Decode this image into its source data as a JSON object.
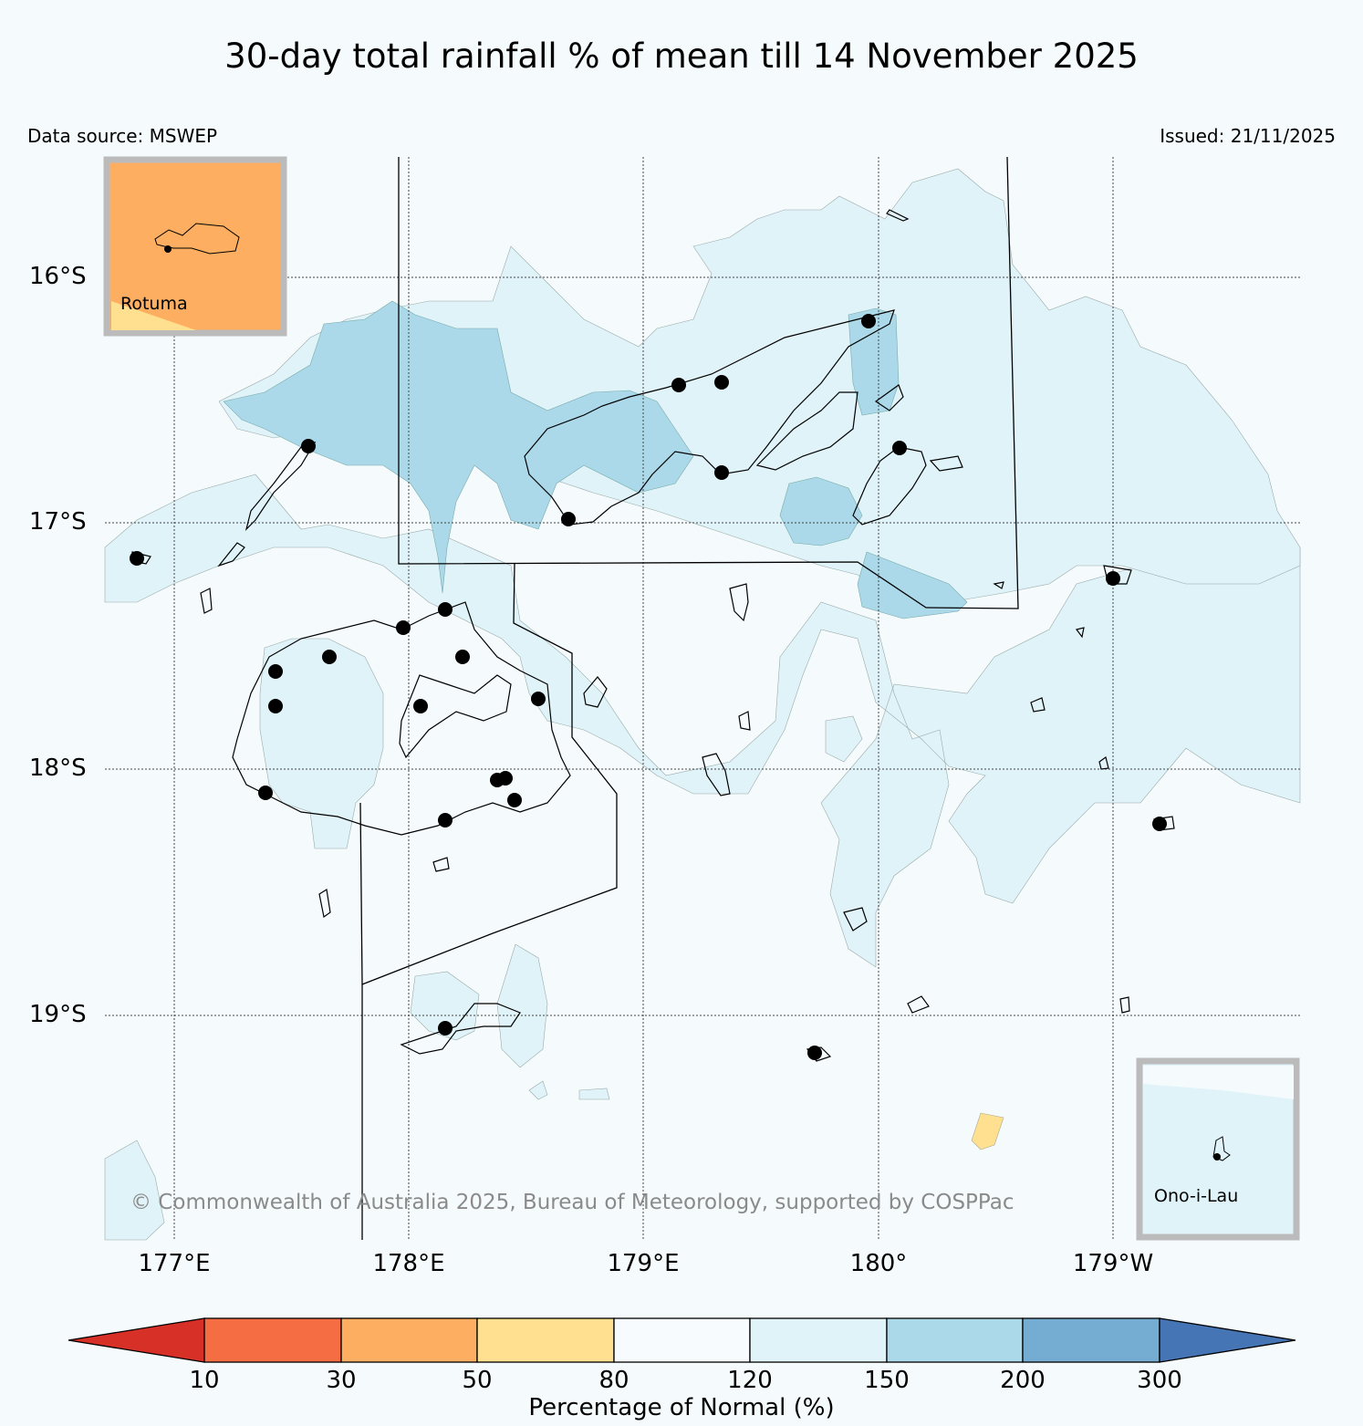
{
  "title": "30-day total rainfall % of mean till 14 November 2025",
  "data_source": "Data source: MSWEP",
  "issued": "Issued: 21/11/2025",
  "copyright": "© Commonwealth of Australia 2025, Bureau of Meteorology, supported by COSPPac",
  "lat_labels": [
    "16°S",
    "17°S",
    "18°S",
    "19°S"
  ],
  "lon_labels": [
    "177°E",
    "178°E",
    "179°E",
    "180°",
    "179°W"
  ],
  "insets": {
    "rotuma": {
      "label": "Rotuma",
      "fill": "#fdae61"
    },
    "ono_i_lau": {
      "label": "Ono-i-Lau",
      "fill": "#e0f3f8"
    }
  },
  "colorbar": {
    "label": "Percentage of Normal (%)",
    "ticks": [
      "10",
      "30",
      "50",
      "80",
      "120",
      "150",
      "200",
      "300"
    ],
    "colors": [
      "#d73027",
      "#f46d43",
      "#fdae61",
      "#fee090",
      "#f7fbfd",
      "#e0f3f8",
      "#abd9e9",
      "#74add1",
      "#4575b4"
    ]
  },
  "legend_colors": {
    "bg": "#f5fbfd",
    "c120_150": "#e0f3f8",
    "c150_200": "#abd9e9",
    "c50_80": "#fee090",
    "c30_50": "#fdae61"
  }
}
